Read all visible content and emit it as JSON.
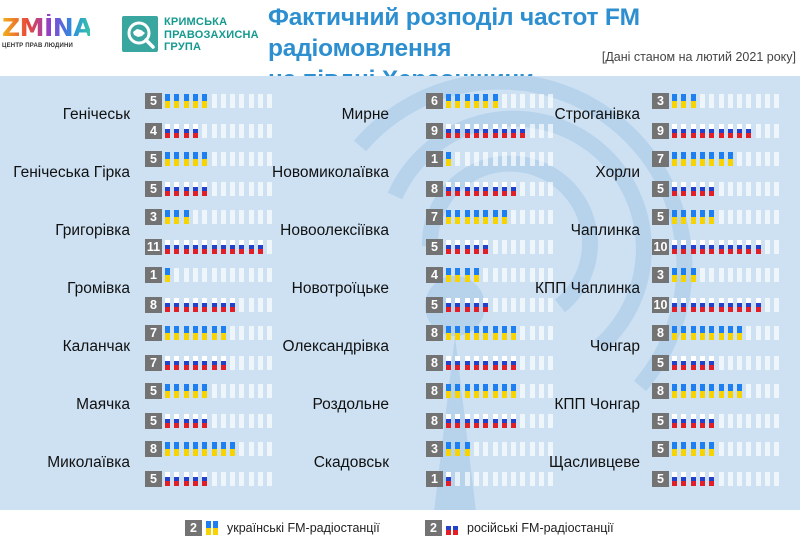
{
  "header": {
    "logo_zmina": "ZMİNA",
    "logo_zmina_sub": "ЦЕНТР ПРАВ ЛЮДИНИ",
    "logo_kpg_lines": [
      "КРИМСЬКА",
      "ПРАВОЗАХИСНА",
      "ГРУПА"
    ],
    "title_line1": "Фактичний розподіл частот FM радіомовлення",
    "title_line2": "на півдні Херсонщини",
    "subtitle": "[Дані станом на лютий 2021 року]"
  },
  "colors": {
    "title": "#2d8fcf",
    "panel_bg": "#cde1f3",
    "ua_blue": "#1e7ff0",
    "ua_yellow": "#f7d400",
    "ru_blue": "#2342c8",
    "ru_red": "#e21e26",
    "count_box": "#737373"
  },
  "legend": {
    "ua_count": "2",
    "ua_label": "українські FM-радіостанції",
    "ru_count": "2",
    "ru_label": "російські FM-радіостанції"
  },
  "chart_data": {
    "type": "table",
    "max_slots": 12,
    "series": [
      {
        "name": "українські FM-радіостанції"
      },
      {
        "name": "російські FM-радіостанції"
      }
    ],
    "columns": [
      [
        {
          "city": "Генічеськ",
          "ua": 5,
          "ru": 4
        },
        {
          "city": "Генічеська Гірка",
          "ua": 5,
          "ru": 5
        },
        {
          "city": "Григорівка",
          "ua": 3,
          "ru": 11
        },
        {
          "city": "Громівка",
          "ua": 1,
          "ru": 8
        },
        {
          "city": "Каланчак",
          "ua": 7,
          "ru": 7
        },
        {
          "city": "Маячка",
          "ua": 5,
          "ru": 5
        },
        {
          "city": "Миколаївка",
          "ua": 8,
          "ru": 5
        }
      ],
      [
        {
          "city": "Мирне",
          "ua": 6,
          "ru": 9
        },
        {
          "city": "Новомиколаївка",
          "ua": 1,
          "ru": 8
        },
        {
          "city": "Новоолексіївка",
          "ua": 7,
          "ru": 5
        },
        {
          "city": "Новотроїцьке",
          "ua": 4,
          "ru": 5
        },
        {
          "city": "Олександрівка",
          "ua": 8,
          "ru": 8
        },
        {
          "city": "Роздольне",
          "ua": 8,
          "ru": 8
        },
        {
          "city": "Скадовськ",
          "ua": 3,
          "ru": 1
        }
      ],
      [
        {
          "city": "Строганівка",
          "ua": 3,
          "ru": 9
        },
        {
          "city": "Хорли",
          "ua": 7,
          "ru": 5
        },
        {
          "city": "Чаплинка",
          "ua": 5,
          "ru": 10
        },
        {
          "city": "КПП Чаплинка",
          "ua": 3,
          "ru": 10
        },
        {
          "city": "Чонгар",
          "ua": 8,
          "ru": 5
        },
        {
          "city": "КПП Чонгар",
          "ua": 8,
          "ru": 5
        },
        {
          "city": "Щасливцеве",
          "ua": 5,
          "ru": 5
        }
      ]
    ]
  }
}
